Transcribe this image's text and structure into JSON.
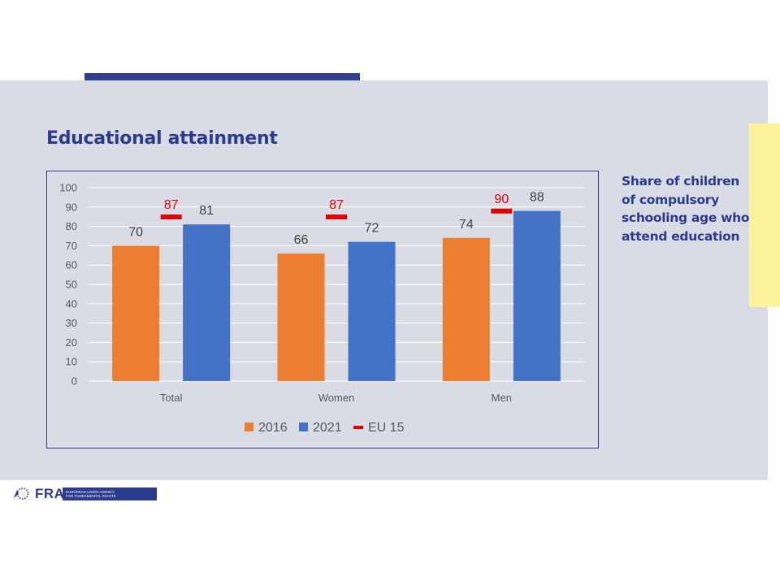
{
  "slide": {
    "title": "Educational attainment",
    "side_text": "Share of children of compulsory schooling age who attend education"
  },
  "logo": {
    "word": "FRA",
    "agency_line1": "EUROPEAN UNION AGENCY",
    "agency_line2": "FOR FUNDAMENTAL RIGHTS"
  },
  "colors": {
    "series_2016": "#ed7d31",
    "series_2021": "#4472c4",
    "eu15_marker": "#e00000",
    "title": "#2b3c8f",
    "background": "#d9dce5",
    "accent_yellow": "#fdf39b"
  },
  "chart_data": {
    "type": "bar",
    "categories": [
      "Total",
      "Women",
      "Men"
    ],
    "series": [
      {
        "name": "2016",
        "values": [
          70,
          66,
          74
        ]
      },
      {
        "name": "2021",
        "values": [
          81,
          72,
          88
        ]
      }
    ],
    "markers": {
      "name": "EU 15",
      "values": [
        87,
        87,
        90
      ]
    },
    "ylim": [
      0,
      100
    ],
    "yticks": [
      0,
      10,
      20,
      30,
      40,
      50,
      60,
      70,
      80,
      90,
      100
    ],
    "grid": true,
    "legend": "bottom",
    "data_labels": true
  }
}
